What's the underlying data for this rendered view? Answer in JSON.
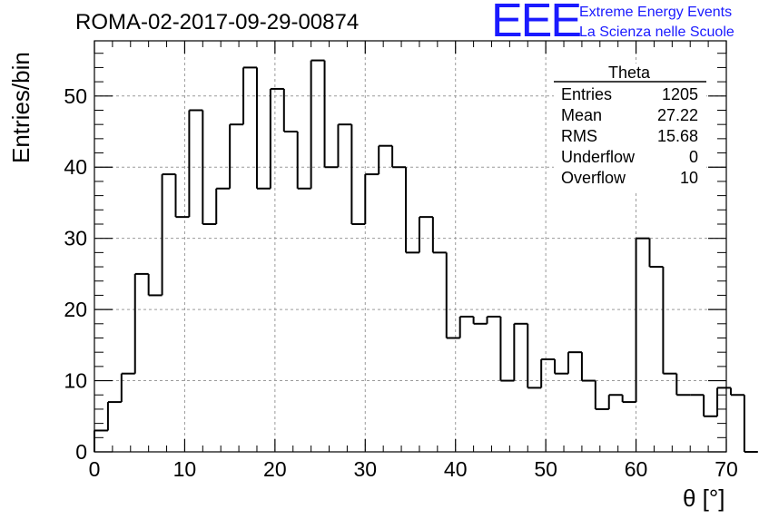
{
  "title": "ROMA-02-2017-09-29-00874",
  "logo": {
    "text": "EEE",
    "line1": "Extreme Energy Events",
    "line2": "La Scienza nelle Scuole"
  },
  "stats_box": {
    "name": "Theta",
    "rows": [
      {
        "label": "Entries",
        "value": "1205"
      },
      {
        "label": "Mean",
        "value": "27.22"
      },
      {
        "label": "RMS",
        "value": "15.68"
      },
      {
        "label": "Underflow",
        "value": "0"
      },
      {
        "label": "Overflow",
        "value": "10"
      }
    ]
  },
  "chart_data": {
    "type": "histogram",
    "xlabel": "θ [°]",
    "ylabel": "Entries/bin",
    "xlim": [
      0,
      70
    ],
    "ylim": [
      0,
      57.75
    ],
    "grid": true,
    "x_ticks": [
      0,
      10,
      20,
      30,
      40,
      50,
      60,
      70
    ],
    "y_ticks": [
      0,
      10,
      20,
      30,
      40,
      50
    ],
    "bin_width": 1.5,
    "bin_edges_start": 0,
    "values": [
      3,
      7,
      11,
      25,
      22,
      39,
      33,
      48,
      32,
      37,
      46,
      54,
      37,
      51,
      45,
      37,
      55,
      40,
      46,
      32,
      39,
      43,
      40,
      28,
      33,
      28,
      16,
      19,
      18,
      19,
      10,
      18,
      9,
      13,
      11,
      14,
      10,
      6,
      8,
      7,
      30,
      26,
      11,
      8,
      8,
      5,
      9,
      8,
      0
    ]
  },
  "colors": {
    "histogram_line": "#000000",
    "grid": "#9a9a9a",
    "logo": "#1a1aff"
  }
}
